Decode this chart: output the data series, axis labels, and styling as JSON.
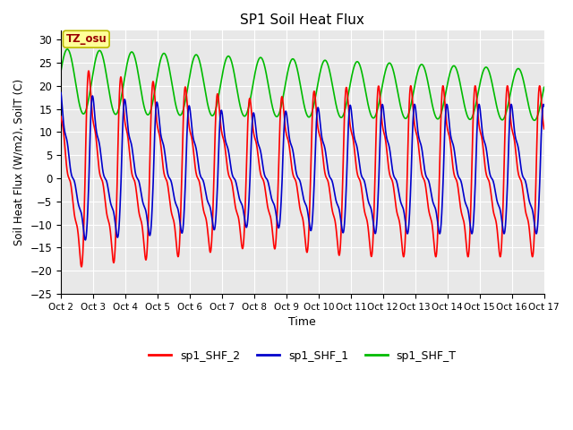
{
  "title": "SP1 Soil Heat Flux",
  "xlabel": "Time",
  "ylabel": "Soil Heat Flux (W/m2), SoilT (C)",
  "ylim": [
    -25,
    32
  ],
  "yticks": [
    -25,
    -20,
    -15,
    -10,
    -5,
    0,
    5,
    10,
    15,
    20,
    25,
    30
  ],
  "xlim_days": [
    0,
    15
  ],
  "x_tick_labels": [
    "Oct 2",
    "Oct 3",
    "Oct 4",
    "Oct 5",
    "Oct 6",
    "Oct 7",
    "Oct 8",
    "Oct 9",
    "Oct 10",
    "Oct 11",
    "Oct 12",
    "Oct 13",
    "Oct 14",
    "Oct 15",
    "Oct 16",
    "Oct 17"
  ],
  "color_shf2": "#ff0000",
  "color_shf1": "#0000cc",
  "color_shft": "#00bb00",
  "legend_labels": [
    "sp1_SHF_2",
    "sp1_SHF_1",
    "sp1_SHF_T"
  ],
  "bg_color": "#e8e8e8",
  "annotation_text": "TZ_osu",
  "annotation_bg": "#ffff99",
  "annotation_border": "#bbbb00"
}
